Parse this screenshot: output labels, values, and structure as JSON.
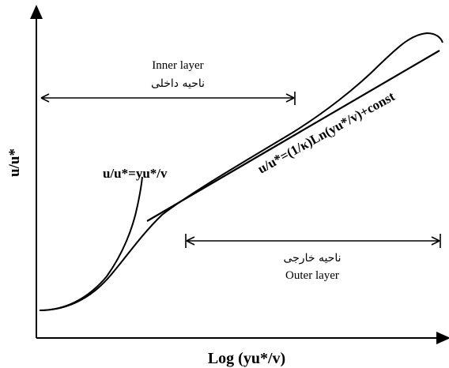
{
  "axes": {
    "y_label": "u/u*",
    "x_label": "Log (yu*/v)"
  },
  "inner_layer": {
    "label_en": "Inner layer",
    "label_fa": "ناحیه داخلی"
  },
  "outer_layer": {
    "label_fa": "ناحیه خارجی",
    "label_en": "Outer layer"
  },
  "equations": {
    "viscous": "u/u*=yu*/v",
    "log_law": "u/u*=(1/κ)Ln(yu*/v)+const"
  }
}
